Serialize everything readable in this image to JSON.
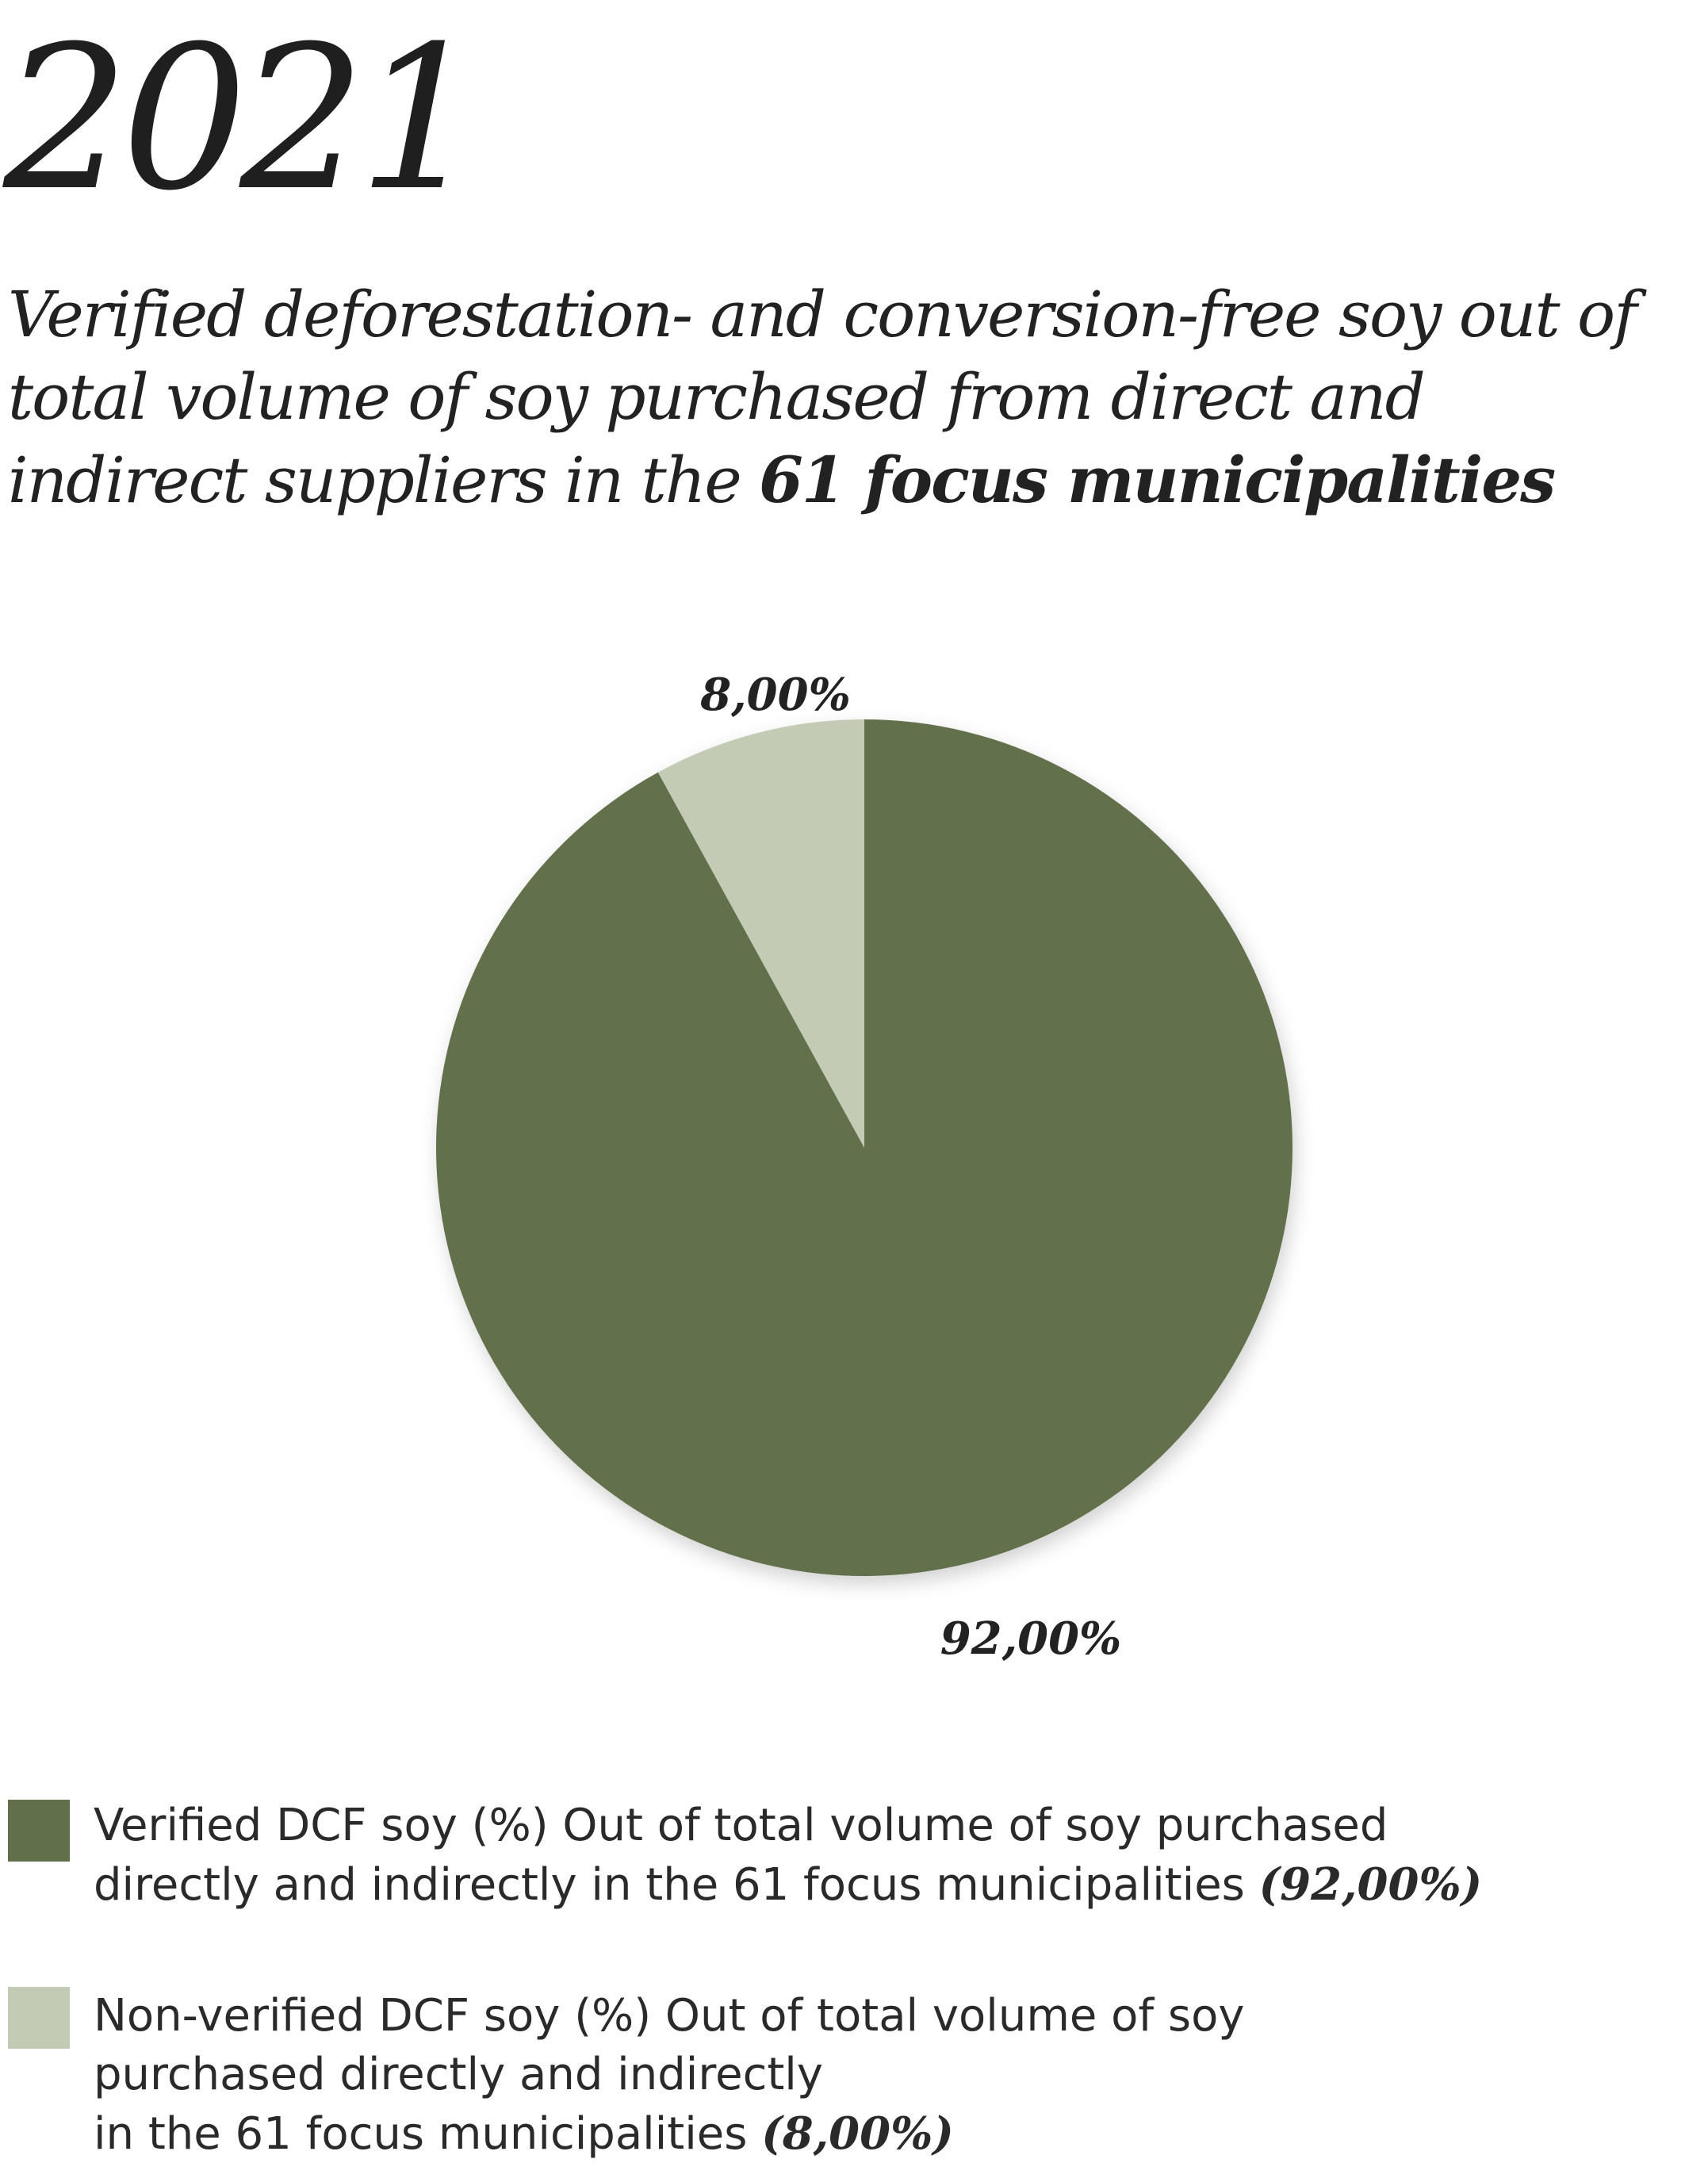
{
  "header": {
    "year": "2021",
    "title_prefix": "Verified deforestation- and conversion-free soy out of total volume of soy purchased from direct and indirect suppliers in the ",
    "title_bold": "61 focus municipalities"
  },
  "chart_data": {
    "type": "pie",
    "title": "Verified deforestation- and conversion-free soy out of total volume of soy purchased from direct and indirect suppliers in the 61 focus municipalities",
    "slices": [
      {
        "name": "Verified DCF soy (%) Out of total volume of soy purchased directly and indirectly in the 61 focus municipalities",
        "value": 92.0,
        "label": "92,00%",
        "color": "#626f4b"
      },
      {
        "name": "Non-verified DCF soy (%) Out of total volume of soy purchased directly and indirectly in the 61 focus municipalities",
        "value": 8.0,
        "label": "8,00%",
        "color": "#c3cbb5"
      }
    ],
    "start_angle": "12 o'clock",
    "direction": "clockwise",
    "legend_position": "bottom"
  },
  "legend": [
    {
      "line1": "Verified DCF soy (%) Out of total volume of soy purchased",
      "line2": "directly and indirectly in the 61 focus municipalities ",
      "value": "(92,00%)"
    },
    {
      "line1": "Non-verified DCF soy (%) Out of total volume of soy",
      "line2": "purchased directly and indirectly",
      "line3": "in the 61 focus municipalities ",
      "value": "(8,00%)"
    }
  ]
}
